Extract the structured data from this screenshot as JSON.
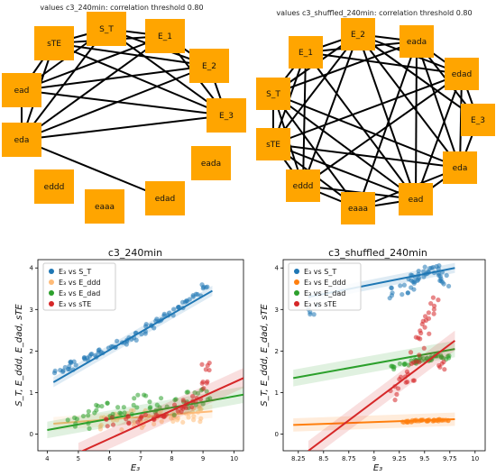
{
  "networks": [
    {
      "title": "values c3_240min: correlation threshold 0.80",
      "node_color": "#ffa500",
      "nodes": [
        "S_T",
        "E_1",
        "E_2",
        "E_3",
        "eada",
        "edad",
        "eaaa",
        "eddd",
        "eda",
        "ead",
        "sTE"
      ],
      "edges": [
        [
          "S_T",
          "E_1"
        ],
        [
          "S_T",
          "E_2"
        ],
        [
          "S_T",
          "E_3"
        ],
        [
          "S_T",
          "eda"
        ],
        [
          "S_T",
          "ead"
        ],
        [
          "S_T",
          "sTE"
        ],
        [
          "E_1",
          "E_2"
        ],
        [
          "E_1",
          "E_3"
        ],
        [
          "E_1",
          "eda"
        ],
        [
          "E_1",
          "ead"
        ],
        [
          "E_1",
          "sTE"
        ],
        [
          "E_2",
          "E_3"
        ],
        [
          "E_2",
          "eda"
        ],
        [
          "E_2",
          "ead"
        ],
        [
          "E_2",
          "sTE"
        ],
        [
          "E_3",
          "eda"
        ],
        [
          "E_3",
          "ead"
        ],
        [
          "E_3",
          "sTE"
        ],
        [
          "eda",
          "ead"
        ],
        [
          "eda",
          "sTE"
        ],
        [
          "eda",
          "edad"
        ],
        [
          "ead",
          "sTE"
        ]
      ]
    },
    {
      "title": "values c3_shuffled_240min: correlation threshold 0.80",
      "node_color": "#ffa500",
      "nodes": [
        "E_2",
        "eada",
        "edad",
        "E_3",
        "eda",
        "ead",
        "eaaa",
        "eddd",
        "sTE",
        "S_T",
        "E_1"
      ],
      "edges": [
        [
          "E_2",
          "eada"
        ],
        [
          "E_2",
          "edad"
        ],
        [
          "E_2",
          "eda"
        ],
        [
          "E_2",
          "ead"
        ],
        [
          "E_2",
          "eddd"
        ],
        [
          "E_2",
          "sTE"
        ],
        [
          "E_2",
          "S_T"
        ],
        [
          "E_2",
          "E_1"
        ],
        [
          "eada",
          "edad"
        ],
        [
          "eada",
          "eda"
        ],
        [
          "eada",
          "ead"
        ],
        [
          "eada",
          "eaaa"
        ],
        [
          "eada",
          "S_T"
        ],
        [
          "eada",
          "E_1"
        ],
        [
          "edad",
          "eda"
        ],
        [
          "edad",
          "ead"
        ],
        [
          "edad",
          "eddd"
        ],
        [
          "edad",
          "sTE"
        ],
        [
          "edad",
          "E_1"
        ],
        [
          "E_3",
          "eada"
        ],
        [
          "E_3",
          "edad"
        ],
        [
          "E_3",
          "eda"
        ],
        [
          "E_3",
          "E_2"
        ],
        [
          "eda",
          "ead"
        ],
        [
          "eda",
          "eaaa"
        ],
        [
          "eda",
          "sTE"
        ],
        [
          "eda",
          "S_T"
        ],
        [
          "ead",
          "eaaa"
        ],
        [
          "ead",
          "eddd"
        ],
        [
          "ead",
          "sTE"
        ],
        [
          "ead",
          "S_T"
        ],
        [
          "ead",
          "E_1"
        ],
        [
          "eaaa",
          "eddd"
        ],
        [
          "eaaa",
          "sTE"
        ],
        [
          "eaaa",
          "S_T"
        ],
        [
          "eddd",
          "sTE"
        ],
        [
          "eddd",
          "S_T"
        ],
        [
          "eddd",
          "E_1"
        ],
        [
          "sTE",
          "S_T"
        ],
        [
          "sTE",
          "E_1"
        ],
        [
          "S_T",
          "E_1"
        ]
      ]
    }
  ],
  "chart_data": [
    {
      "type": "scatter",
      "title": "c3_240min",
      "xlabel": "E₃",
      "ylabel": "S_T, E_ddd, E_dad, sTE",
      "xlim": [
        3.7,
        10.3
      ],
      "ylim": [
        -0.4,
        4.2
      ],
      "xticks": [
        4,
        5,
        6,
        7,
        8,
        9,
        10
      ],
      "yticks": [
        0,
        1,
        2,
        3,
        4
      ],
      "grid": false,
      "legend": "top-left",
      "series": [
        {
          "name": "E₃ vs S_T",
          "color": "#1f77b4",
          "spread": 0.05,
          "x": [
            4.4,
            4.7,
            4.9,
            5.2,
            5.5,
            5.8,
            6.1,
            6.4,
            6.7,
            7.0,
            7.3,
            7.6,
            7.9,
            8.2,
            8.5,
            8.8,
            9.1
          ],
          "y": [
            1.5,
            1.6,
            1.7,
            1.8,
            1.9,
            2.0,
            2.1,
            2.2,
            2.3,
            2.45,
            2.6,
            2.75,
            2.9,
            3.05,
            3.2,
            3.35,
            3.55
          ],
          "fit": [
            [
              4.2,
              1.25
            ],
            [
              9.3,
              3.45
            ]
          ]
        },
        {
          "name": "E₃ vs E_ddd",
          "color": "#ffbb78",
          "spread": 0.2,
          "x": [
            5.8,
            6.1,
            6.4,
            6.7,
            7.0,
            7.3,
            7.6,
            7.9,
            8.2,
            8.5,
            8.8,
            9.0
          ],
          "y": [
            0.3,
            0.35,
            0.3,
            0.4,
            0.35,
            0.4,
            0.45,
            0.4,
            0.5,
            0.45,
            0.5,
            0.5
          ],
          "fit": [
            [
              4.2,
              0.25
            ],
            [
              9.3,
              0.55
            ]
          ]
        },
        {
          "name": "E₃ vs E_dad",
          "color": "#2ca02c",
          "spread": 0.25,
          "x": [
            4.8,
            5.2,
            5.6,
            6.0,
            6.4,
            6.8,
            7.2,
            7.6,
            8.0,
            8.4,
            8.8,
            9.1
          ],
          "y": [
            0.25,
            0.3,
            0.45,
            0.5,
            0.6,
            0.7,
            0.75,
            0.65,
            0.7,
            0.85,
            0.9,
            0.95
          ],
          "fit": [
            [
              4.0,
              0.1
            ],
            [
              10.3,
              0.95
            ]
          ]
        },
        {
          "name": "E₃ vs sTE",
          "color": "#d62728",
          "spread": 0.12,
          "x": [
            6.0,
            6.5,
            7.0,
            7.4,
            7.8,
            8.2,
            8.5,
            8.8,
            9.0,
            9.1
          ],
          "y": [
            0.3,
            0.35,
            0.4,
            0.45,
            0.5,
            0.6,
            0.7,
            0.9,
            1.2,
            1.6
          ],
          "fit": [
            [
              5.0,
              -0.45
            ],
            [
              10.3,
              1.35
            ]
          ]
        }
      ]
    },
    {
      "type": "scatter",
      "title": "c3_shuffled_240min",
      "xlabel": "E₃",
      "ylabel": "S_T, E_ddd, E_dad, sTE",
      "xlim": [
        8.1,
        10.1
      ],
      "ylim": [
        -0.4,
        4.2
      ],
      "xticks": [
        8.25,
        8.5,
        8.75,
        9.0,
        9.25,
        9.5,
        9.75,
        10.0
      ],
      "yticks": [
        0,
        1,
        2,
        3,
        4
      ],
      "grid": false,
      "legend": "top-left",
      "series": [
        {
          "name": "E₃ vs S_T",
          "color": "#1f77b4",
          "spread": 0.15,
          "x": [
            8.4,
            9.2,
            9.3,
            9.35,
            9.4,
            9.45,
            9.5,
            9.55,
            9.6,
            9.65,
            9.7
          ],
          "y": [
            3.0,
            3.4,
            3.5,
            3.6,
            3.7,
            3.8,
            3.85,
            3.9,
            3.95,
            3.8,
            3.7
          ],
          "fit": [
            [
              8.35,
              3.3
            ],
            [
              9.8,
              4.0
            ]
          ]
        },
        {
          "name": "E₃ vs E_ddd",
          "color": "#ff7f0e",
          "spread": 0.02,
          "x": [
            9.3,
            9.35,
            9.4,
            9.45,
            9.5,
            9.55,
            9.6,
            9.65,
            9.7
          ],
          "y": [
            0.3,
            0.3,
            0.32,
            0.33,
            0.33,
            0.32,
            0.33,
            0.34,
            0.33
          ],
          "fit": [
            [
              8.2,
              0.22
            ],
            [
              9.8,
              0.36
            ]
          ]
        },
        {
          "name": "E₃ vs E_dad",
          "color": "#2ca02c",
          "spread": 0.05,
          "x": [
            9.2,
            9.3,
            9.4,
            9.45,
            9.5,
            9.55,
            9.6,
            9.65,
            9.7
          ],
          "y": [
            1.6,
            1.7,
            1.75,
            1.75,
            1.8,
            1.8,
            1.85,
            1.85,
            1.85
          ],
          "fit": [
            [
              8.2,
              1.35
            ],
            [
              9.8,
              2.05
            ]
          ]
        },
        {
          "name": "E₃ vs sTE",
          "color": "#d62728",
          "spread": 0.25,
          "x": [
            9.2,
            9.3,
            9.35,
            9.4,
            9.45,
            9.5,
            9.55,
            9.6,
            9.65
          ],
          "y": [
            0.9,
            1.2,
            1.5,
            1.8,
            2.2,
            2.5,
            2.8,
            3.1,
            1.6
          ],
          "fit": [
            [
              8.35,
              -0.4
            ],
            [
              9.8,
              2.25
            ]
          ]
        }
      ]
    }
  ]
}
